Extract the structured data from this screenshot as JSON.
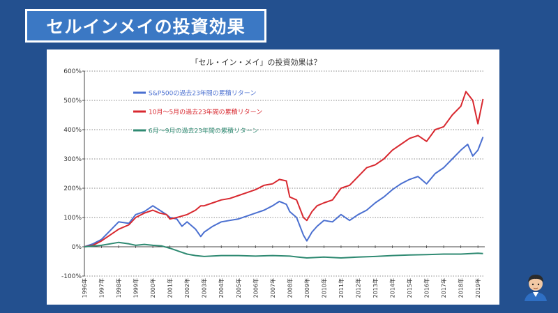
{
  "header": {
    "title": "セルインメイの投資効果"
  },
  "chart_data": {
    "type": "line",
    "title": "「セル・イン・メイ」の投資効果は？",
    "xlabel": "",
    "ylabel": "",
    "ylim": [
      -100,
      600
    ],
    "y_ticks": [
      "-100%",
      "0%",
      "100%",
      "200%",
      "300%",
      "400%",
      "500%",
      "600%"
    ],
    "y_tick_values": [
      -100,
      0,
      100,
      200,
      300,
      400,
      500,
      600
    ],
    "x_ticks": [
      "1996年",
      "1997年",
      "1998年",
      "1999年",
      "2000年",
      "2001年",
      "2002年",
      "2003年",
      "2004年",
      "2005年",
      "2006年",
      "2007年",
      "2008年",
      "2009年",
      "2010年",
      "2011年",
      "2012年",
      "2013年",
      "2014年",
      "2015年",
      "2016年",
      "2017年",
      "2018年",
      "2019年"
    ],
    "xlim": [
      1996,
      2019.4
    ],
    "grid": "horizontal dotted",
    "legend": "top-left",
    "series": [
      {
        "name": "S&P500の過去23年間の累積リターン",
        "color": "#4a6fd0",
        "points": [
          [
            1996,
            0
          ],
          [
            1996.5,
            10
          ],
          [
            1997,
            25
          ],
          [
            1997.5,
            55
          ],
          [
            1998,
            85
          ],
          [
            1998.6,
            80
          ],
          [
            1999,
            110
          ],
          [
            1999.5,
            120
          ],
          [
            2000,
            140
          ],
          [
            2000.4,
            125
          ],
          [
            2000.8,
            110
          ],
          [
            2001,
            100
          ],
          [
            2001.4,
            95
          ],
          [
            2001.7,
            70
          ],
          [
            2002,
            85
          ],
          [
            2002.5,
            60
          ],
          [
            2002.8,
            35
          ],
          [
            2003,
            50
          ],
          [
            2003.5,
            70
          ],
          [
            2004,
            85
          ],
          [
            2004.5,
            90
          ],
          [
            2005,
            95
          ],
          [
            2005.5,
            105
          ],
          [
            2006,
            115
          ],
          [
            2006.5,
            125
          ],
          [
            2007,
            140
          ],
          [
            2007.4,
            155
          ],
          [
            2007.8,
            145
          ],
          [
            2008,
            120
          ],
          [
            2008.4,
            100
          ],
          [
            2008.8,
            40
          ],
          [
            2009,
            20
          ],
          [
            2009.3,
            50
          ],
          [
            2009.6,
            70
          ],
          [
            2010,
            90
          ],
          [
            2010.5,
            85
          ],
          [
            2011,
            110
          ],
          [
            2011.5,
            90
          ],
          [
            2012,
            110
          ],
          [
            2012.5,
            125
          ],
          [
            2013,
            150
          ],
          [
            2013.5,
            170
          ],
          [
            2014,
            195
          ],
          [
            2014.5,
            215
          ],
          [
            2015,
            230
          ],
          [
            2015.5,
            240
          ],
          [
            2016,
            215
          ],
          [
            2016.5,
            250
          ],
          [
            2017,
            270
          ],
          [
            2017.5,
            300
          ],
          [
            2018,
            330
          ],
          [
            2018.4,
            350
          ],
          [
            2018.7,
            310
          ],
          [
            2019,
            330
          ],
          [
            2019.3,
            375
          ]
        ]
      },
      {
        "name": "10月～5月の過去23年間の累積リターン",
        "color": "#d8282f",
        "points": [
          [
            1996,
            0
          ],
          [
            1996.5,
            5
          ],
          [
            1997,
            20
          ],
          [
            1997.5,
            40
          ],
          [
            1998,
            60
          ],
          [
            1998.6,
            75
          ],
          [
            1999,
            100
          ],
          [
            1999.5,
            115
          ],
          [
            2000,
            125
          ],
          [
            2000.4,
            115
          ],
          [
            2000.8,
            110
          ],
          [
            2001,
            95
          ],
          [
            2001.4,
            100
          ],
          [
            2001.7,
            105
          ],
          [
            2002,
            110
          ],
          [
            2002.5,
            125
          ],
          [
            2002.8,
            140
          ],
          [
            2003,
            140
          ],
          [
            2003.5,
            150
          ],
          [
            2004,
            160
          ],
          [
            2004.5,
            165
          ],
          [
            2005,
            175
          ],
          [
            2005.5,
            185
          ],
          [
            2006,
            195
          ],
          [
            2006.5,
            210
          ],
          [
            2007,
            215
          ],
          [
            2007.4,
            230
          ],
          [
            2007.8,
            225
          ],
          [
            2008,
            170
          ],
          [
            2008.4,
            160
          ],
          [
            2008.8,
            100
          ],
          [
            2009,
            90
          ],
          [
            2009.3,
            120
          ],
          [
            2009.6,
            140
          ],
          [
            2010,
            150
          ],
          [
            2010.5,
            160
          ],
          [
            2011,
            200
          ],
          [
            2011.5,
            210
          ],
          [
            2012,
            240
          ],
          [
            2012.5,
            270
          ],
          [
            2013,
            280
          ],
          [
            2013.5,
            300
          ],
          [
            2014,
            330
          ],
          [
            2014.5,
            350
          ],
          [
            2015,
            370
          ],
          [
            2015.5,
            380
          ],
          [
            2016,
            360
          ],
          [
            2016.5,
            400
          ],
          [
            2017,
            410
          ],
          [
            2017.5,
            450
          ],
          [
            2018,
            480
          ],
          [
            2018.3,
            530
          ],
          [
            2018.7,
            500
          ],
          [
            2019,
            420
          ],
          [
            2019.3,
            505
          ]
        ]
      },
      {
        "name": "6月～9月の過去23年間の累積リターン",
        "color": "#2f8a72",
        "points": [
          [
            1996,
            0
          ],
          [
            1997,
            5
          ],
          [
            1997.5,
            10
          ],
          [
            1998,
            15
          ],
          [
            1998.6,
            10
          ],
          [
            1999,
            5
          ],
          [
            1999.5,
            8
          ],
          [
            2000,
            5
          ],
          [
            2000.5,
            3
          ],
          [
            2001,
            -5
          ],
          [
            2001.5,
            -15
          ],
          [
            2002,
            -25
          ],
          [
            2002.5,
            -30
          ],
          [
            2003,
            -33
          ],
          [
            2004,
            -30
          ],
          [
            2005,
            -30
          ],
          [
            2006,
            -32
          ],
          [
            2007,
            -30
          ],
          [
            2008,
            -32
          ],
          [
            2008.5,
            -35
          ],
          [
            2009,
            -38
          ],
          [
            2010,
            -35
          ],
          [
            2011,
            -38
          ],
          [
            2012,
            -35
          ],
          [
            2013,
            -33
          ],
          [
            2014,
            -30
          ],
          [
            2015,
            -28
          ],
          [
            2016,
            -27
          ],
          [
            2017,
            -25
          ],
          [
            2018,
            -25
          ],
          [
            2019,
            -22
          ],
          [
            2019.3,
            -23
          ]
        ]
      }
    ]
  }
}
